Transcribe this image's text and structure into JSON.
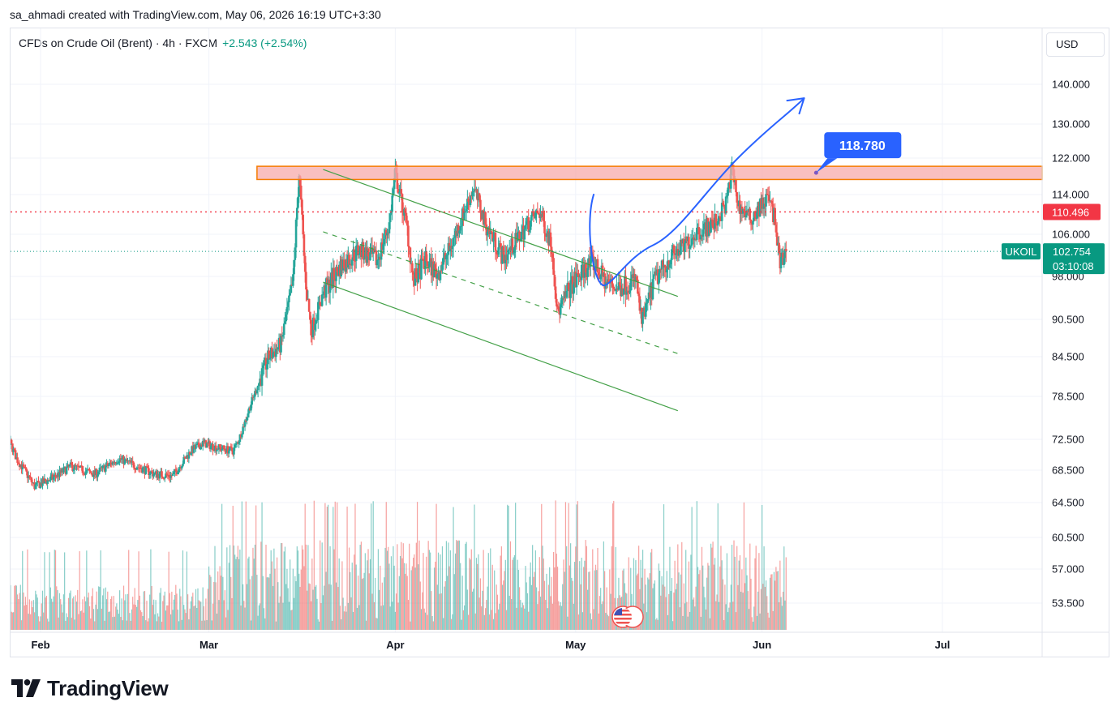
{
  "header": {
    "credit": "sa_ahmadi created with TradingView.com, May 06, 2026 16:19 UTC+3:30"
  },
  "symbol": {
    "name": "CFDs on Crude Oil (Brent) · 4h · FXCM",
    "change": "+2.543 (+2.54%)"
  },
  "currency": "USD",
  "footer": {
    "brand": "TradingView"
  },
  "colors": {
    "up": "#26a69a",
    "down": "#ef5350",
    "channel": "#43a047",
    "arrow": "#2962ff",
    "zone_fill": "#f7a9a9",
    "zone_border": "#f57c00",
    "current_price_bg": "#089981",
    "prev_close_bg": "#f23645"
  },
  "icons": {
    "flag": "us-flag-icon",
    "logo": "tradingview-logo-icon"
  },
  "chart_data": {
    "type": "candlestick",
    "interval": "4h",
    "y_axis_ticks": [
      "140.000",
      "130.000",
      "122.000",
      "114.000",
      "106.000",
      "98.000",
      "90.500",
      "84.500",
      "78.500",
      "72.500",
      "68.500",
      "64.500",
      "60.500",
      "57.000",
      "53.500"
    ],
    "x_axis_ticks": [
      "Feb",
      "Mar",
      "Apr",
      "May",
      "Jun",
      "Jul"
    ],
    "price_labels": {
      "prev_close": "110.496",
      "current_symbol": "UKOIL",
      "current_price": "102.754",
      "countdown": "03:10:08"
    },
    "annotation": {
      "label": "118.780",
      "value": 118.78
    },
    "resistance_zone": {
      "low": 117.3,
      "high": 120.2,
      "from": "2026-03-09"
    },
    "channel": {
      "upper": [
        [
          "2026-03-20",
          119.5
        ],
        [
          "2026-05-18",
          94.5
        ]
      ],
      "middle": [
        [
          "2026-03-20",
          106.5
        ],
        [
          "2026-05-18",
          85.0
        ]
      ],
      "lower": [
        [
          "2026-03-20",
          97.0
        ],
        [
          "2026-05-18",
          76.5
        ]
      ]
    },
    "projection": [
      [
        "2026-05-04",
        114.0
      ],
      [
        "2026-05-06",
        96.5
      ],
      [
        "2026-05-14",
        104.0
      ],
      [
        "2026-05-28",
        122.0
      ],
      [
        "2026-06-08",
        143.5
      ]
    ],
    "price_path": [
      [
        "2026-01-23",
        68.0
      ],
      [
        "2026-01-25",
        69.8
      ],
      [
        "2026-01-27",
        72.0
      ],
      [
        "2026-01-28",
        70.0
      ],
      [
        "2026-01-31",
        66.5
      ],
      [
        "2026-02-03",
        67.5
      ],
      [
        "2026-02-06",
        69.0
      ],
      [
        "2026-02-10",
        68.0
      ],
      [
        "2026-02-14",
        70.0
      ],
      [
        "2026-02-17",
        69.0
      ],
      [
        "2026-02-20",
        68.0
      ],
      [
        "2026-02-23",
        67.8
      ],
      [
        "2026-02-26",
        71.0
      ],
      [
        "2026-02-28",
        72.0
      ],
      [
        "2026-03-02",
        71.5
      ],
      [
        "2026-03-05",
        71.0
      ],
      [
        "2026-03-06",
        72.5
      ],
      [
        "2026-03-08",
        77.5
      ],
      [
        "2026-03-11",
        84.5
      ],
      [
        "2026-03-13",
        86.5
      ],
      [
        "2026-03-15",
        97.0
      ],
      [
        "2026-03-16",
        118.5
      ],
      [
        "2026-03-17",
        98.5
      ],
      [
        "2026-03-18",
        88.5
      ],
      [
        "2026-03-20",
        95.0
      ],
      [
        "2026-03-23",
        100.0
      ],
      [
        "2026-03-26",
        103.0
      ],
      [
        "2026-03-29",
        101.0
      ],
      [
        "2026-03-31",
        108.0
      ],
      [
        "2026-04-01",
        118.5
      ],
      [
        "2026-04-03",
        107.0
      ],
      [
        "2026-04-04",
        97.0
      ],
      [
        "2026-04-06",
        101.0
      ],
      [
        "2026-04-08",
        98.5
      ],
      [
        "2026-04-10",
        103.0
      ],
      [
        "2026-04-12",
        109.0
      ],
      [
        "2026-04-14",
        115.5
      ],
      [
        "2026-04-16",
        108.0
      ],
      [
        "2026-04-19",
        101.5
      ],
      [
        "2026-04-21",
        104.5
      ],
      [
        "2026-04-23",
        108.0
      ],
      [
        "2026-04-25",
        110.5
      ],
      [
        "2026-04-27",
        104.0
      ],
      [
        "2026-04-28",
        91.5
      ],
      [
        "2026-04-30",
        96.0
      ],
      [
        "2026-05-03",
        100.0
      ],
      [
        "2026-05-04",
        100.5
      ],
      [
        "2026-05-06",
        97.0
      ],
      [
        "2026-05-08",
        96.0
      ],
      [
        "2026-05-11",
        97.5
      ],
      [
        "2026-05-12",
        90.0
      ],
      [
        "2026-05-14",
        97.0
      ],
      [
        "2026-05-17",
        102.0
      ],
      [
        "2026-05-19",
        103.5
      ],
      [
        "2026-05-21",
        106.5
      ],
      [
        "2026-05-24",
        108.0
      ],
      [
        "2026-05-26",
        112.0
      ],
      [
        "2026-05-27",
        119.8
      ],
      [
        "2026-05-28",
        112.0
      ],
      [
        "2026-05-30",
        109.0
      ],
      [
        "2026-06-01",
        112.0
      ],
      [
        "2026-06-02",
        113.5
      ],
      [
        "2026-06-03",
        109.5
      ],
      [
        "2026-06-04",
        100.0
      ],
      [
        "2026-06-05",
        102.754
      ]
    ]
  }
}
